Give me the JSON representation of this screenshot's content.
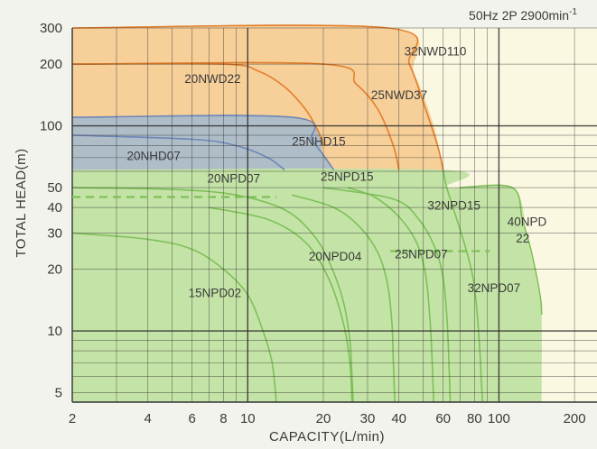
{
  "chart_data": {
    "type": "area",
    "title": "",
    "condition": {
      "label": "50Hz 2P 2900min",
      "superscript": "-1"
    },
    "xlabel": "CAPACITY(L/min)",
    "ylabel": "TOTAL HEAD(m)",
    "xscale": "log",
    "yscale": "log",
    "xlim": [
      2,
      250
    ],
    "ylim": [
      4.5,
      300
    ],
    "x_ticks": [
      2,
      4,
      6,
      8,
      10,
      20,
      30,
      40,
      60,
      80,
      100,
      200
    ],
    "y_ticks": [
      5,
      10,
      20,
      30,
      40,
      50,
      100,
      200,
      300
    ],
    "grid": true,
    "colors": {
      "green_fill": "#c4e3a6",
      "green_line": "#7fc05a",
      "blue_fill": "#aebdc7",
      "blue_line": "#6f86b8",
      "orange_fill": "#f6cf99",
      "orange_line": "#e47f2b",
      "plot_bg": "#fbf8e1",
      "grid": "#2b2b2b"
    },
    "regions": [
      {
        "group": "orange",
        "points": [
          [
            2,
            300
          ],
          [
            36,
            300
          ],
          [
            46,
            180
          ],
          [
            55,
            100
          ],
          [
            60,
            61
          ],
          [
            2,
            61
          ]
        ]
      },
      {
        "group": "blue",
        "points": [
          [
            2,
            110
          ],
          [
            15,
            110
          ],
          [
            20,
            72
          ],
          [
            22,
            61
          ],
          [
            2,
            61
          ]
        ]
      },
      {
        "group": "green",
        "points": [
          [
            2,
            61
          ],
          [
            60,
            61
          ],
          [
            62,
            50
          ],
          [
            113,
            50
          ],
          [
            130,
            28
          ],
          [
            145,
            15
          ],
          [
            148,
            12
          ],
          [
            148,
            4.5
          ],
          [
            2,
            4.5
          ]
        ]
      }
    ],
    "series": [
      {
        "name": "32NWD110",
        "group": "orange",
        "points": [
          [
            2,
            300
          ],
          [
            36,
            300
          ],
          [
            44,
            200
          ],
          [
            50,
            130
          ],
          [
            57,
            80
          ],
          [
            60,
            61
          ]
        ]
      },
      {
        "name": "25NWD37",
        "group": "orange",
        "points": [
          [
            2,
            200
          ],
          [
            20,
            200
          ],
          [
            27,
            160
          ],
          [
            33,
            120
          ],
          [
            38,
            80
          ],
          [
            40,
            61
          ]
        ]
      },
      {
        "name": "20NWD22",
        "group": "orange",
        "points": [
          [
            2,
            200
          ],
          [
            8,
            200
          ],
          [
            11,
            185
          ],
          [
            14,
            155
          ],
          [
            17,
            120
          ],
          [
            19,
            95
          ],
          [
            20,
            80
          ]
        ]
      },
      {
        "name": "25NHD15",
        "group": "blue",
        "points": [
          [
            2,
            110
          ],
          [
            15,
            110
          ],
          [
            18,
            85
          ],
          [
            20,
            72
          ],
          [
            22,
            61
          ]
        ]
      },
      {
        "name": "20NHD07",
        "group": "blue",
        "points": [
          [
            2,
            90
          ],
          [
            6,
            86
          ],
          [
            9,
            80
          ],
          [
            12,
            70
          ],
          [
            14,
            61
          ]
        ]
      },
      {
        "name": "40NPD22",
        "group": "green",
        "points": [
          [
            70,
            50
          ],
          [
            113,
            50
          ],
          [
            124,
            35
          ],
          [
            134,
            25
          ],
          [
            142,
            18
          ],
          [
            147,
            14
          ],
          [
            148,
            12
          ]
        ]
      },
      {
        "name": "32NPD15",
        "group": "green",
        "points": [
          [
            60,
            61
          ],
          [
            62,
            50
          ],
          [
            68,
            35
          ],
          [
            74,
            25
          ],
          [
            79,
            18
          ],
          [
            82,
            12
          ],
          [
            84,
            8
          ],
          [
            85,
            6
          ],
          [
            86,
            4.5
          ]
        ]
      },
      {
        "name": "32NPD07",
        "group": "green",
        "points": [
          [
            20,
            50
          ],
          [
            38,
            44
          ],
          [
            48,
            35
          ],
          [
            56,
            25
          ],
          [
            60,
            18
          ],
          [
            62,
            12
          ],
          [
            63,
            8
          ],
          [
            64,
            4.5
          ]
        ]
      },
      {
        "name": "25NPD15",
        "group": "green",
        "points": [
          [
            25,
            50
          ],
          [
            32,
            45
          ],
          [
            40,
            36
          ],
          [
            47,
            27
          ],
          [
            51,
            19
          ],
          [
            53,
            12
          ],
          [
            54,
            8
          ],
          [
            55,
            4.5
          ]
        ]
      },
      {
        "name": "25NPD07",
        "group": "green",
        "points": [
          [
            15,
            46
          ],
          [
            22,
            40
          ],
          [
            28,
            32
          ],
          [
            33,
            24
          ],
          [
            36,
            17
          ],
          [
            37.5,
            11
          ],
          [
            38,
            7
          ],
          [
            38.5,
            4.5
          ]
        ]
      },
      {
        "name": "20NPD04",
        "group": "green",
        "points": [
          [
            7,
            40
          ],
          [
            12,
            35
          ],
          [
            17,
            27
          ],
          [
            21,
            18
          ],
          [
            24,
            11
          ],
          [
            25.5,
            7
          ],
          [
            26,
            4.5
          ]
        ]
      },
      {
        "name": "20NPD07",
        "group": "green",
        "points": [
          [
            2,
            50
          ],
          [
            5,
            49
          ],
          [
            9,
            46
          ],
          [
            14,
            39
          ],
          [
            18,
            30
          ],
          [
            21,
            22
          ],
          [
            24,
            14
          ],
          [
            25.5,
            9
          ],
          [
            26,
            6
          ],
          [
            26.3,
            4.5
          ]
        ]
      },
      {
        "name": "15NPD02",
        "group": "green",
        "points": [
          [
            2,
            30
          ],
          [
            4,
            28
          ],
          [
            6,
            25
          ],
          [
            8,
            20
          ],
          [
            10,
            15
          ],
          [
            11.5,
            10
          ],
          [
            12.5,
            7
          ],
          [
            13,
            4.5
          ]
        ]
      }
    ],
    "reference_lines": [
      {
        "group": "green",
        "style": "dashed",
        "points": [
          [
            2,
            45
          ],
          [
            13,
            45
          ]
        ]
      },
      {
        "group": "green",
        "style": "dashed",
        "points": [
          [
            37,
            24.5
          ],
          [
            92,
            24.5
          ]
        ]
      }
    ],
    "annotations": [
      {
        "text": "32NWD110",
        "x": 42,
        "y": 220
      },
      {
        "text": "25NWD37",
        "x": 31,
        "y": 135
      },
      {
        "text": "20NWD22",
        "x": 5.6,
        "y": 162
      },
      {
        "text": "25NHD15",
        "x": 15,
        "y": 80
      },
      {
        "text": "20NHD07",
        "x": 3.3,
        "y": 68
      },
      {
        "text": "20NPD07",
        "x": 6.9,
        "y": 53
      },
      {
        "text": "25NPD15",
        "x": 19.5,
        "y": 54
      },
      {
        "text": "32NPD15",
        "x": 52,
        "y": 39
      },
      {
        "text": "40NPD",
        "x": 108,
        "y": 32.5
      },
      {
        "text": "22",
        "x": 117,
        "y": 27
      },
      {
        "text": "20NPD04",
        "x": 17.5,
        "y": 22
      },
      {
        "text": "25NPD07",
        "x": 38.5,
        "y": 22.6
      },
      {
        "text": "32NPD07",
        "x": 75,
        "y": 15.5
      },
      {
        "text": "15NPD02",
        "x": 5.8,
        "y": 14.6
      }
    ]
  }
}
